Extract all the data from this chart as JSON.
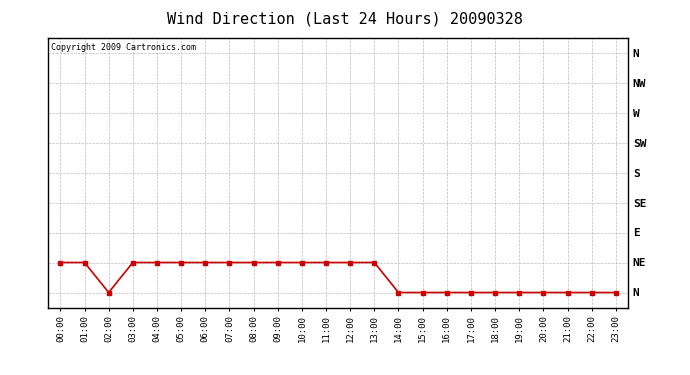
{
  "title": "Wind Direction (Last 24 Hours) 20090328",
  "copyright": "Copyright 2009 Cartronics.com",
  "background_color": "#ffffff",
  "plot_bg_color": "#ffffff",
  "line_color": "#cc0000",
  "marker_color": "#cc0000",
  "grid_color": "#bbbbbb",
  "ytick_labels": [
    "N",
    "NW",
    "W",
    "SW",
    "S",
    "SE",
    "E",
    "NE",
    "N"
  ],
  "ytick_values": [
    8,
    7,
    6,
    5,
    4,
    3,
    2,
    1,
    0
  ],
  "hours": [
    0,
    1,
    2,
    3,
    4,
    5,
    6,
    7,
    8,
    9,
    10,
    11,
    12,
    13,
    14,
    15,
    16,
    17,
    18,
    19,
    20,
    21,
    22,
    23
  ],
  "wind_values": [
    1,
    1,
    0,
    1,
    1,
    1,
    1,
    1,
    1,
    1,
    1,
    1,
    1,
    1,
    0,
    0,
    0,
    0,
    0,
    0,
    0,
    0,
    0,
    0
  ],
  "xlim": [
    -0.5,
    23.5
  ],
  "ylim": [
    -0.5,
    8.5
  ],
  "figsize": [
    6.9,
    3.75
  ],
  "dpi": 100,
  "title_fontsize": 11,
  "copyright_fontsize": 6,
  "xtick_fontsize": 6.5,
  "ytick_fontsize": 8
}
